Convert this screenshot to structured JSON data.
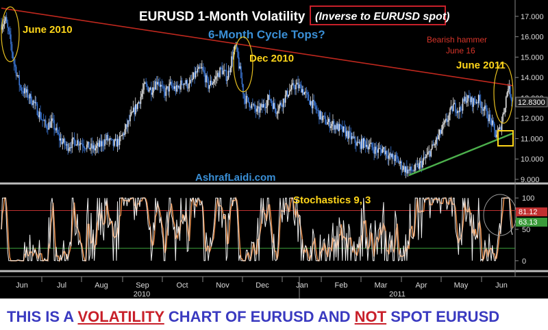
{
  "chart_data": [
    {
      "type": "candlestick",
      "title": "EURUSD 1-Month Volatility",
      "title_note": "(Inverse to EURUSD spot)",
      "subtitle": "6-Month Cycle Tops?",
      "watermark": "AshrafLaidi.com",
      "ylim": [
        9,
        17.6
      ],
      "yticks": [
        9.0,
        10.0,
        11.0,
        12.0,
        13.0,
        14.0,
        15.0,
        16.0,
        17.0
      ],
      "ytick_labels": [
        "9.000",
        "10.000",
        "11.000",
        "12.000",
        "13.000",
        "14.000",
        "15.000",
        "16.000",
        "17.000"
      ],
      "last_value_label": "12.8300",
      "last_value": 12.83,
      "months": [
        "Jun",
        "Jul",
        "Aug",
        "Sep",
        "Oct",
        "Nov",
        "Dec",
        "Jan",
        "Feb",
        "Mar",
        "Apr",
        "May",
        "Jun"
      ],
      "years": [
        "2010",
        "2011"
      ],
      "annotations": {
        "june2010": "June 2010",
        "dec2010": "Dec 2010",
        "june2011": "June 2011",
        "hammer": "Bearish hammer",
        "hammer_date": "June 16"
      },
      "colors": {
        "up": "#e6e6e6",
        "down": "#3c78d8",
        "trendline_down": "#c0281e",
        "trendline_up": "#4cb04c",
        "annotation": "#ffd61a",
        "note": "#d8352a",
        "subtitle": "#3a8fd6"
      },
      "trend_path": [
        [
          0,
          16.6
        ],
        [
          4,
          16.8
        ],
        [
          8,
          15.9
        ],
        [
          12,
          14.7
        ],
        [
          18,
          13.5
        ],
        [
          24,
          13.2
        ],
        [
          30,
          12.8
        ],
        [
          36,
          12.2
        ],
        [
          42,
          11.6
        ],
        [
          48,
          11.8
        ],
        [
          55,
          11.0
        ],
        [
          62,
          10.6
        ],
        [
          70,
          10.9
        ],
        [
          76,
          10.8
        ],
        [
          82,
          10.6
        ],
        [
          88,
          10.5
        ],
        [
          94,
          10.7
        ],
        [
          100,
          11.0
        ],
        [
          106,
          10.7
        ],
        [
          112,
          10.9
        ],
        [
          118,
          11.5
        ],
        [
          124,
          12.2
        ],
        [
          130,
          12.8
        ],
        [
          136,
          13.6
        ],
        [
          142,
          13.4
        ],
        [
          148,
          13.9
        ],
        [
          154,
          13.2
        ],
        [
          160,
          13.6
        ],
        [
          166,
          13.4
        ],
        [
          172,
          13.8
        ],
        [
          178,
          13.6
        ],
        [
          184,
          14.2
        ],
        [
          190,
          14.4
        ],
        [
          196,
          13.6
        ],
        [
          202,
          13.9
        ],
        [
          208,
          14.4
        ],
        [
          214,
          14.0
        ],
        [
          218,
          14.9
        ],
        [
          222,
          15.5
        ],
        [
          226,
          14.3
        ],
        [
          230,
          13.0
        ],
        [
          236,
          12.7
        ],
        [
          242,
          12.3
        ],
        [
          248,
          12.6
        ],
        [
          254,
          13.0
        ],
        [
          260,
          12.4
        ],
        [
          266,
          12.8
        ],
        [
          272,
          13.3
        ],
        [
          278,
          13.6
        ],
        [
          284,
          13.5
        ],
        [
          290,
          13.0
        ],
        [
          296,
          12.6
        ],
        [
          302,
          12.1
        ],
        [
          308,
          11.8
        ],
        [
          314,
          11.7
        ],
        [
          320,
          11.5
        ],
        [
          326,
          11.3
        ],
        [
          332,
          11.0
        ],
        [
          338,
          10.7
        ],
        [
          344,
          10.8
        ],
        [
          350,
          10.6
        ],
        [
          356,
          10.4
        ],
        [
          362,
          10.5
        ],
        [
          368,
          10.1
        ],
        [
          374,
          10.0
        ],
        [
          380,
          9.6
        ],
        [
          386,
          9.4
        ],
        [
          392,
          9.5
        ],
        [
          398,
          9.8
        ],
        [
          404,
          10.2
        ],
        [
          410,
          10.7
        ],
        [
          416,
          11.3
        ],
        [
          422,
          11.9
        ],
        [
          428,
          12.6
        ],
        [
          434,
          12.4
        ],
        [
          440,
          13.0
        ],
        [
          446,
          12.8
        ],
        [
          452,
          12.9
        ],
        [
          458,
          12.4
        ],
        [
          464,
          11.8
        ],
        [
          468,
          11.2
        ],
        [
          472,
          11.4
        ],
        [
          476,
          12.4
        ],
        [
          480,
          13.6
        ],
        [
          484,
          12.83
        ]
      ],
      "trendlines": [
        {
          "name": "down",
          "from": [
            0,
            17.4
          ],
          "to": [
            484,
            13.6
          ]
        },
        {
          "name": "up",
          "from": [
            386,
            9.2
          ],
          "to": [
            484,
            11.25
          ]
        }
      ]
    },
    {
      "type": "line",
      "title": "Stochastics 9, 3",
      "ylim": [
        -10,
        110
      ],
      "yticks": [
        0,
        50,
        100
      ],
      "levels": [
        80,
        20
      ],
      "last_values": [
        "81.12",
        "63.13"
      ],
      "colors": {
        "k": "#f0f0f0",
        "d": "#e08a4a",
        "upper": "#c03030",
        "lower": "#3a9a3a"
      }
    }
  ],
  "caption": {
    "part1": "THIS IS A ",
    "part2": "VOLATILITY",
    "part3": " CHART OF EURUSD AND ",
    "part4": "NOT",
    "part5": " SPOT EURUSD"
  }
}
